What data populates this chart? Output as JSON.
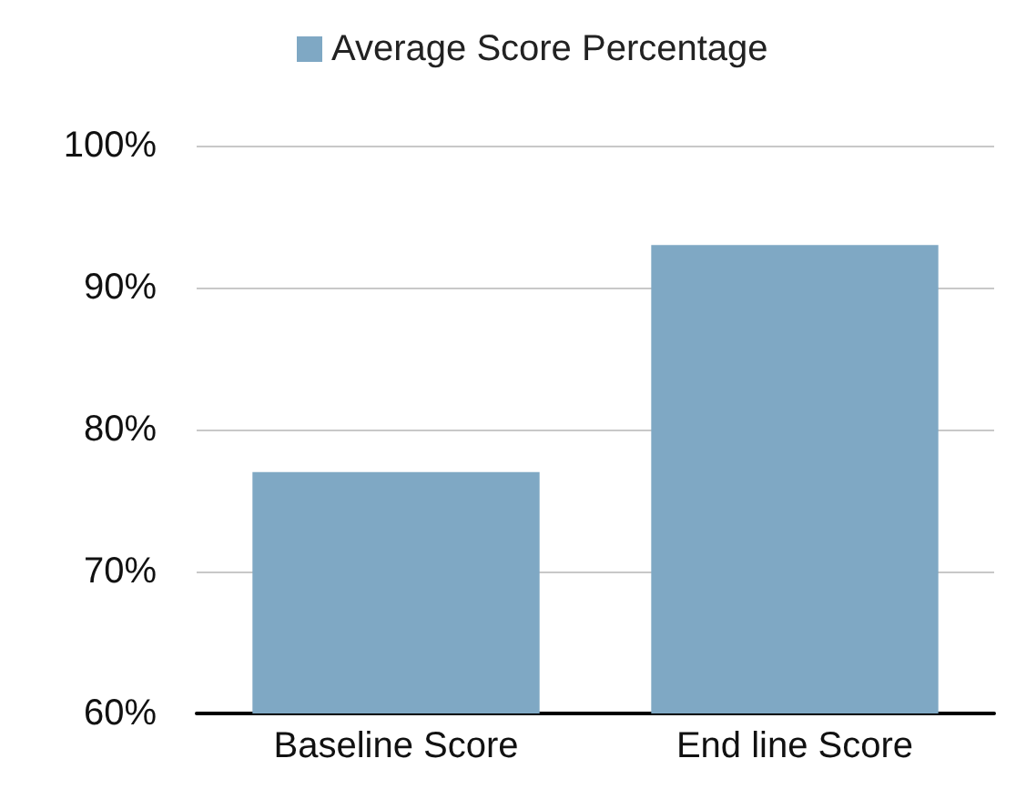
{
  "chart_data": {
    "type": "bar",
    "categories": [
      "Baseline Score",
      "End line Score"
    ],
    "series": [
      {
        "name": "Average Score Percentage",
        "color": "#7fa8c4",
        "values": [
          77,
          93
        ]
      }
    ],
    "ylim": [
      60,
      100
    ],
    "yticks": [
      {
        "value": 60,
        "label": "60%"
      },
      {
        "value": 70,
        "label": "70%"
      },
      {
        "value": 80,
        "label": "80%"
      },
      {
        "value": 90,
        "label": "90%"
      },
      {
        "value": 100,
        "label": "100%"
      }
    ],
    "grid": "y",
    "legend": "top"
  }
}
